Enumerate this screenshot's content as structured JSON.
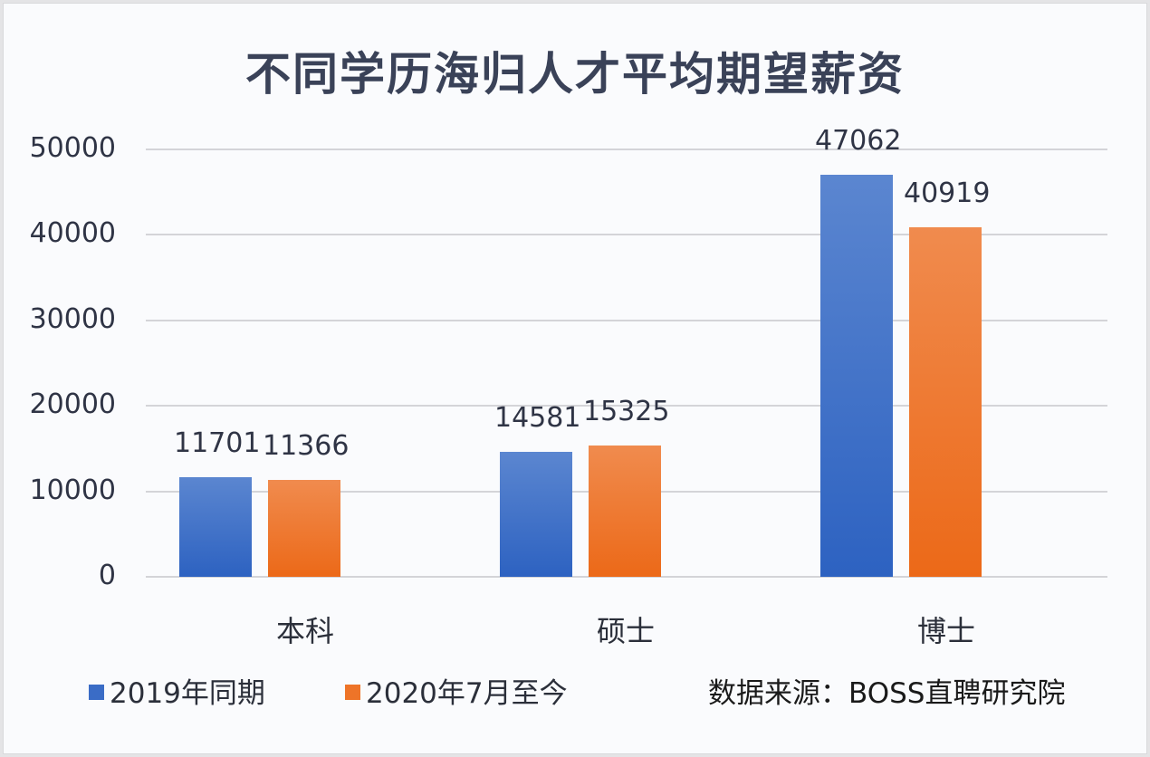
{
  "title": "不同学历海归人才平均期望薪资",
  "chart_data": {
    "type": "bar",
    "title": "不同学历海归人才平均期望薪资",
    "categories": [
      "本科",
      "硕士",
      "博士"
    ],
    "series": [
      {
        "name": "2019年同期",
        "color": "#3a6cc6",
        "values": [
          11701,
          14581,
          47062
        ]
      },
      {
        "name": "2020年7月至今",
        "color": "#ee7428",
        "values": [
          11366,
          15325,
          40919
        ]
      }
    ],
    "xlabel": "",
    "ylabel": "",
    "ylim": [
      0,
      50000
    ],
    "yticks": [
      "0",
      "10000",
      "20000",
      "30000",
      "40000",
      "50000"
    ],
    "grid": true,
    "legend_position": "bottom-left",
    "data_labels": true,
    "annotation": "数据来源：BOSS直聘研究院"
  },
  "labels": {
    "data": [
      [
        "11701",
        "14581",
        "47062"
      ],
      [
        "11366",
        "15325",
        "40919"
      ]
    ]
  },
  "legend": {
    "items": [
      {
        "label": "2019年同期",
        "color": "#3a6cc6"
      },
      {
        "label": "2020年7月至今",
        "color": "#ee7428"
      }
    ]
  },
  "source": "数据来源：BOSS直聘研究院"
}
